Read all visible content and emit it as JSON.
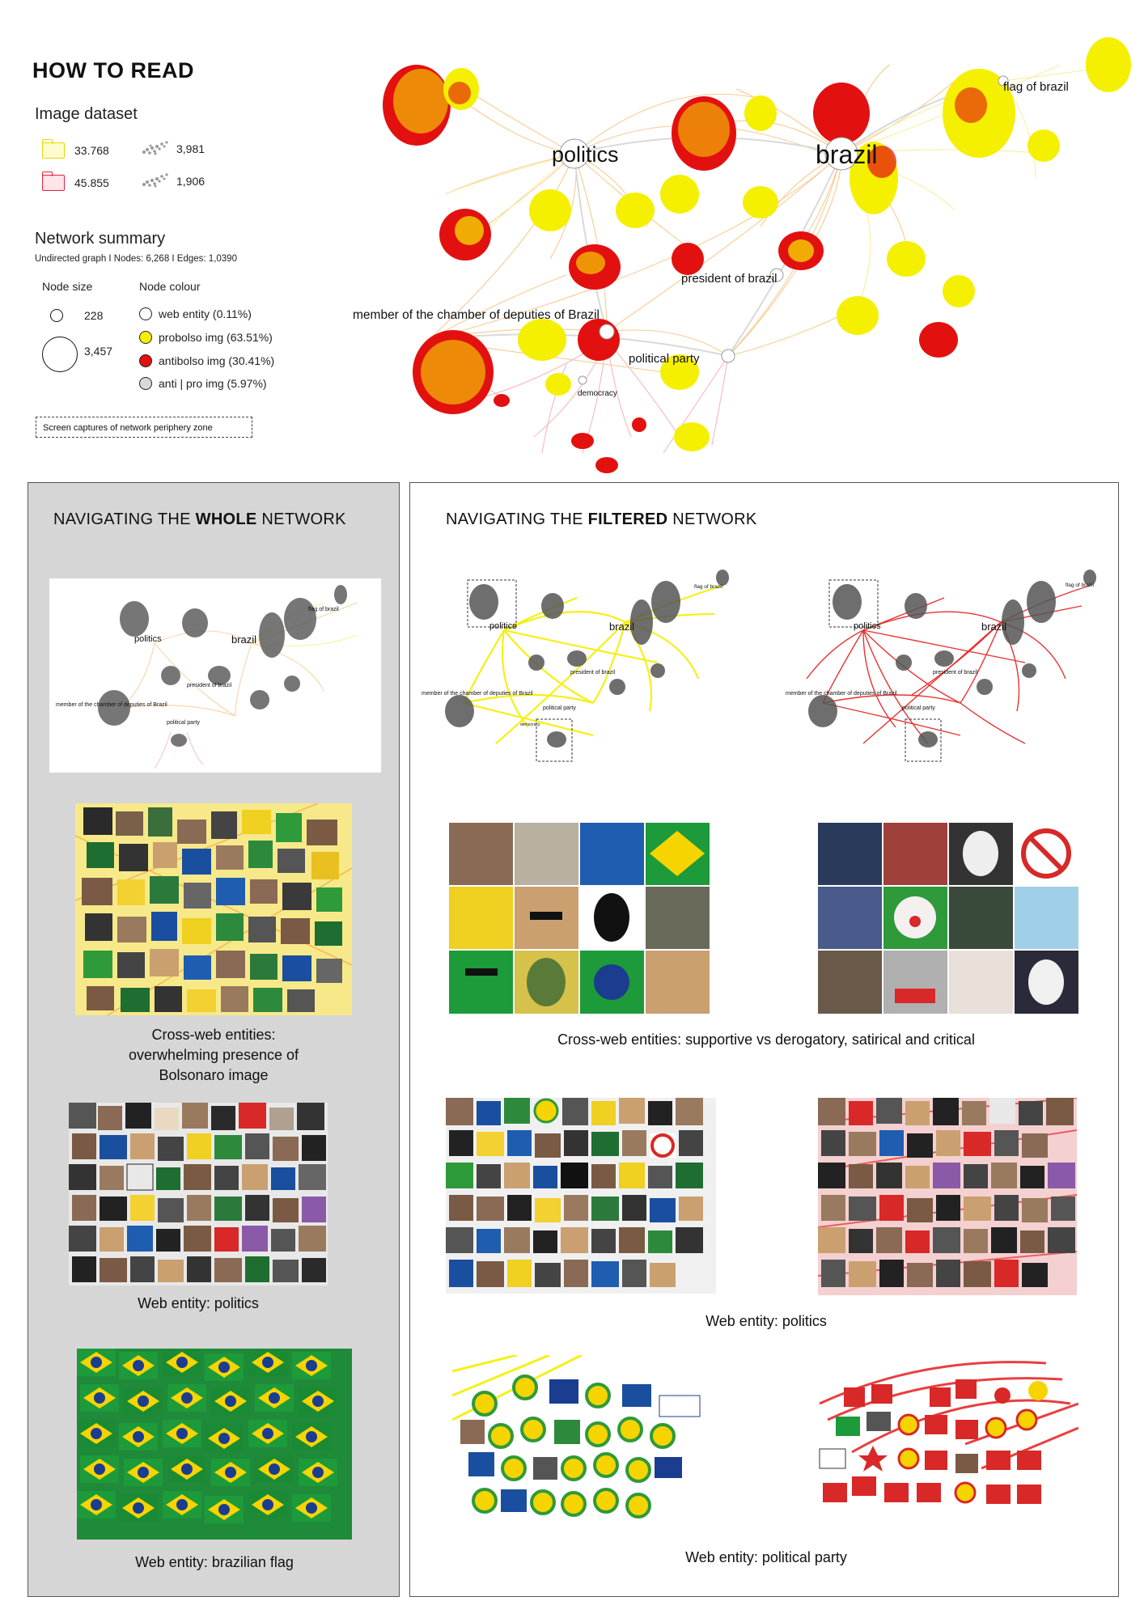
{
  "how_to_read": {
    "title": "HOW TO READ",
    "image_dataset": {
      "heading": "Image dataset",
      "items": [
        {
          "icon": "yellow-folder-icon",
          "color": "#f3e600",
          "value": "33.768",
          "cluster_value": "3,981"
        },
        {
          "icon": "red-folder-icon",
          "color": "#e8203a",
          "value": "45.855",
          "cluster_value": "1,906"
        }
      ]
    },
    "network_summary": {
      "heading": "Network summary",
      "description": "Undirected graph I Nodes: 6,268 I Edges: 1,0390",
      "node_size_label": "Node size",
      "node_colour_label": "Node colour",
      "sizes": [
        "228",
        "3,457"
      ],
      "colours": [
        {
          "label": "web entity (0.11%)",
          "color": "#ffffff"
        },
        {
          "label": "probolso img (63.51%)",
          "color": "#f5ef00"
        },
        {
          "label": "antibolso img (30.41%)",
          "color": "#e31010"
        },
        {
          "label": "anti | pro img (5.97%)",
          "color": "#d9d9d9"
        }
      ]
    },
    "capture_box": "Screen captures of network periphery zone"
  },
  "network": {
    "labels": {
      "politics": "politics",
      "brazil": "brazil",
      "flag": "flag of brazil",
      "president": "president of brazil",
      "chamber": "member of the chamber of deputies of Brazil",
      "party": "political party",
      "democracy": "democracy"
    },
    "colors": {
      "edge_orange": "#f2a23a",
      "edge_yellow": "#f5e04a",
      "edge_red": "#f08080",
      "node_red": "#e31010",
      "node_yellow": "#f5ef00"
    }
  },
  "whole": {
    "title_pre": "NAVIGATING THE ",
    "title_bold": "WHOLE",
    "title_post": " NETWORK",
    "captions": [
      "Cross-web entities:\noverwhelming presence of\nBolsonaro image",
      "Web entity: politics",
      "Web entity: brazilian flag"
    ]
  },
  "filtered": {
    "title_pre": "NAVIGATING THE ",
    "title_bold": "FILTERED",
    "title_post": " NETWORK",
    "captions": [
      "Cross-web entities: supportive vs derogatory, satirical and critical",
      "Web entity: politics",
      "Web entity: political party"
    ]
  }
}
